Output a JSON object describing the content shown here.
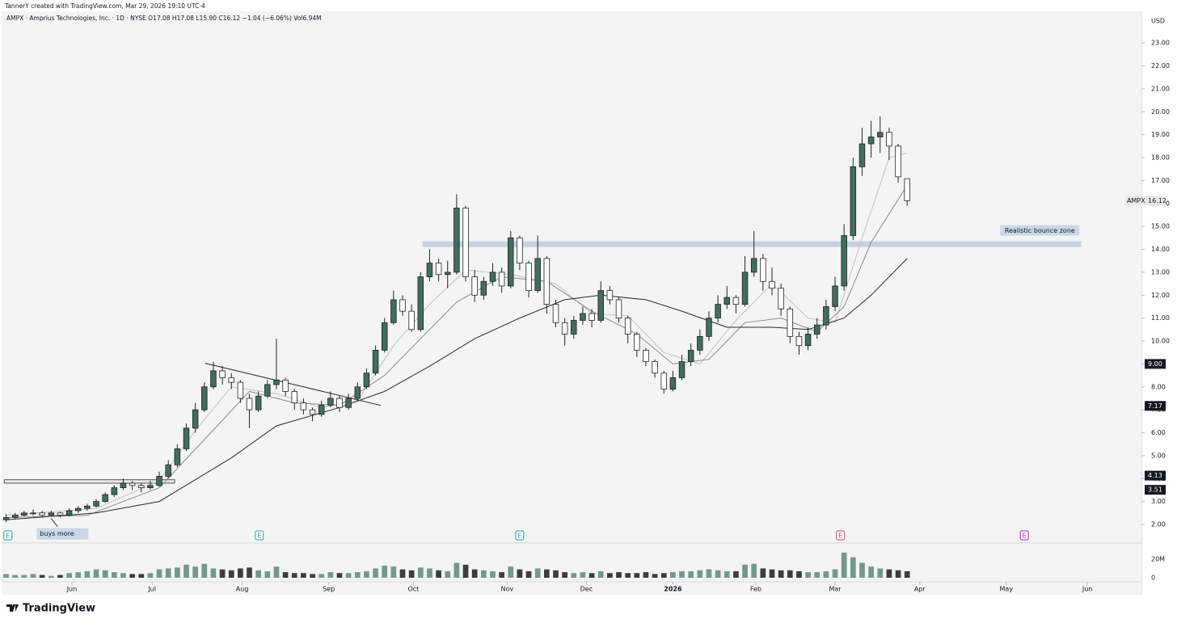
{
  "header": {
    "credit": "TannerY created with TradingView.com, Mar 29, 2026 19:10 UTC-4",
    "symbol_line": "AMPX · Amprius Technologies, Inc. · 1D · NYSE  O17.08  H17.08  L15.90  C16.12  −1.04 (−6.06%)  Vol6.94M"
  },
  "chart_data": {
    "type": "candlestick",
    "up_color": "#3f6e5e",
    "down_color": "#ffffff",
    "candles": [
      [
        2.2,
        2.45,
        2.1,
        2.3
      ],
      [
        2.3,
        2.5,
        2.25,
        2.4
      ],
      [
        2.4,
        2.6,
        2.35,
        2.5
      ],
      [
        2.5,
        2.65,
        2.4,
        2.5
      ],
      [
        2.5,
        2.6,
        2.3,
        2.4
      ],
      [
        2.4,
        2.6,
        2.35,
        2.5
      ],
      [
        2.5,
        2.55,
        2.3,
        2.4
      ],
      [
        2.4,
        2.7,
        2.35,
        2.6
      ],
      [
        2.6,
        2.8,
        2.5,
        2.7
      ],
      [
        2.7,
        2.9,
        2.6,
        2.8
      ],
      [
        2.8,
        3.1,
        2.75,
        3.0
      ],
      [
        3.0,
        3.4,
        2.95,
        3.3
      ],
      [
        3.3,
        3.7,
        3.2,
        3.6
      ],
      [
        3.6,
        4.0,
        3.5,
        3.8
      ],
      [
        3.8,
        3.9,
        3.5,
        3.7
      ],
      [
        3.7,
        3.8,
        3.4,
        3.6
      ],
      [
        3.6,
        3.9,
        3.5,
        3.7
      ],
      [
        3.7,
        4.3,
        3.65,
        4.1
      ],
      [
        4.1,
        4.8,
        4.0,
        4.6
      ],
      [
        4.6,
        5.5,
        4.5,
        5.3
      ],
      [
        5.3,
        6.4,
        5.2,
        6.2
      ],
      [
        6.2,
        7.3,
        6.0,
        7.0
      ],
      [
        7.0,
        8.2,
        6.9,
        8.0
      ],
      [
        8.0,
        9.1,
        7.9,
        8.7
      ],
      [
        8.7,
        8.9,
        8.1,
        8.4
      ],
      [
        8.4,
        8.6,
        7.9,
        8.2
      ],
      [
        8.2,
        8.3,
        7.3,
        7.5
      ],
      [
        7.5,
        7.7,
        6.2,
        7.0
      ],
      [
        7.0,
        7.8,
        6.9,
        7.6
      ],
      [
        7.6,
        8.3,
        7.5,
        8.1
      ],
      [
        8.1,
        10.1,
        7.9,
        8.3
      ],
      [
        8.3,
        8.4,
        7.6,
        7.8
      ],
      [
        7.8,
        7.9,
        7.0,
        7.3
      ],
      [
        7.3,
        7.5,
        6.8,
        7.0
      ],
      [
        7.0,
        7.1,
        6.5,
        6.8
      ],
      [
        6.8,
        7.4,
        6.7,
        7.2
      ],
      [
        7.2,
        7.8,
        7.1,
        7.5
      ],
      [
        7.5,
        7.6,
        6.9,
        7.1
      ],
      [
        7.1,
        7.7,
        7.0,
        7.5
      ],
      [
        7.5,
        8.2,
        7.4,
        8.0
      ],
      [
        8.0,
        8.8,
        7.9,
        8.6
      ],
      [
        8.6,
        9.8,
        8.5,
        9.6
      ],
      [
        9.6,
        11.0,
        9.5,
        10.8
      ],
      [
        10.8,
        12.2,
        10.7,
        11.8
      ],
      [
        11.8,
        12.0,
        11.1,
        11.3
      ],
      [
        11.3,
        11.6,
        10.4,
        10.5
      ],
      [
        10.5,
        13.0,
        10.4,
        12.8
      ],
      [
        12.8,
        14.0,
        12.6,
        13.4
      ],
      [
        13.4,
        13.6,
        12.6,
        12.9
      ],
      [
        12.9,
        13.5,
        12.3,
        13.0
      ],
      [
        13.0,
        16.4,
        12.9,
        15.8
      ],
      [
        15.8,
        15.9,
        12.6,
        12.8
      ],
      [
        12.8,
        13.1,
        11.7,
        12.0
      ],
      [
        12.0,
        12.8,
        11.8,
        12.6
      ],
      [
        12.6,
        13.4,
        12.4,
        13.0
      ],
      [
        13.0,
        13.2,
        12.1,
        12.4
      ],
      [
        12.4,
        14.8,
        12.3,
        14.5
      ],
      [
        14.5,
        14.6,
        13.1,
        13.4
      ],
      [
        13.4,
        13.5,
        11.9,
        12.2
      ],
      [
        12.2,
        14.6,
        12.1,
        13.6
      ],
      [
        13.6,
        13.7,
        11.2,
        11.6
      ],
      [
        11.6,
        11.8,
        10.6,
        10.8
      ],
      [
        10.8,
        11.0,
        9.8,
        10.3
      ],
      [
        10.3,
        11.1,
        10.1,
        10.9
      ],
      [
        10.9,
        11.5,
        10.7,
        11.2
      ],
      [
        11.2,
        11.4,
        10.6,
        10.9
      ],
      [
        10.9,
        12.6,
        10.8,
        12.2
      ],
      [
        12.2,
        12.4,
        11.6,
        11.8
      ],
      [
        11.8,
        11.9,
        10.8,
        11.0
      ],
      [
        11.0,
        11.1,
        9.9,
        10.3
      ],
      [
        10.3,
        10.4,
        9.3,
        9.6
      ],
      [
        9.6,
        9.7,
        8.9,
        9.1
      ],
      [
        9.1,
        9.2,
        8.4,
        8.6
      ],
      [
        8.6,
        8.7,
        7.7,
        7.9
      ],
      [
        7.9,
        8.7,
        7.8,
        8.4
      ],
      [
        8.4,
        9.4,
        8.3,
        9.1
      ],
      [
        9.1,
        9.9,
        8.9,
        9.6
      ],
      [
        9.6,
        10.5,
        9.4,
        10.2
      ],
      [
        10.2,
        11.3,
        10.0,
        11.0
      ],
      [
        11.0,
        12.0,
        10.8,
        11.6
      ],
      [
        11.6,
        12.4,
        11.4,
        11.9
      ],
      [
        11.9,
        12.0,
        11.2,
        11.6
      ],
      [
        11.6,
        13.7,
        11.5,
        13.0
      ],
      [
        13.0,
        14.8,
        12.8,
        13.6
      ],
      [
        13.6,
        13.8,
        12.2,
        12.6
      ],
      [
        12.6,
        13.2,
        12.0,
        12.3
      ],
      [
        12.3,
        12.5,
        11.1,
        11.4
      ],
      [
        11.4,
        11.5,
        9.9,
        10.2
      ],
      [
        10.2,
        10.4,
        9.4,
        9.8
      ],
      [
        9.8,
        10.6,
        9.6,
        10.3
      ],
      [
        10.3,
        11.0,
        10.1,
        10.7
      ],
      [
        10.7,
        11.8,
        10.5,
        11.5
      ],
      [
        11.5,
        12.8,
        11.3,
        12.4
      ],
      [
        12.4,
        15.1,
        12.2,
        14.6
      ],
      [
        14.6,
        18.0,
        14.4,
        17.6
      ],
      [
        17.6,
        19.3,
        17.2,
        18.6
      ],
      [
        18.6,
        19.6,
        18.0,
        18.9
      ],
      [
        18.9,
        19.8,
        18.2,
        19.1
      ],
      [
        19.1,
        19.3,
        17.9,
        18.5
      ],
      [
        18.5,
        18.6,
        16.9,
        17.16
      ],
      [
        17.08,
        17.08,
        15.9,
        16.12
      ]
    ],
    "xlim": [
      -0.5,
      126
    ],
    "xticks": [
      {
        "value": 7.3,
        "label": "Jun"
      },
      {
        "value": 16.2,
        "label": "Jul"
      },
      {
        "value": 26.2,
        "label": "Aug"
      },
      {
        "value": 35.8,
        "label": "Sep"
      },
      {
        "value": 45.2,
        "label": "Oct"
      },
      {
        "value": 55.6,
        "label": "Nov"
      },
      {
        "value": 64.4,
        "label": "Dec"
      },
      {
        "value": 74,
        "label": "2026"
      },
      {
        "value": 83.2,
        "label": "Feb"
      },
      {
        "value": 92,
        "label": "Mar"
      },
      {
        "value": 101.4,
        "label": "Apr"
      },
      {
        "value": 111,
        "label": "May"
      },
      {
        "value": 120,
        "label": "Jun"
      }
    ],
    "ylim": [
      1.19,
      24.38
    ],
    "yticks": [
      {
        "value": 2,
        "label": "2.00"
      },
      {
        "value": 3,
        "label": "3.00"
      },
      {
        "value": 4,
        "label": "4.00"
      },
      {
        "value": 5,
        "label": "5.00"
      },
      {
        "value": 6,
        "label": "6.00"
      },
      {
        "value": 7,
        "label": "7.00"
      },
      {
        "value": 8,
        "label": "8.00"
      },
      {
        "value": 9,
        "label": "9.00"
      },
      {
        "value": 10,
        "label": "10.00"
      },
      {
        "value": 11,
        "label": "11.00"
      },
      {
        "value": 12,
        "label": "12.00"
      },
      {
        "value": 13,
        "label": "13.00"
      },
      {
        "value": 14,
        "label": "14.00"
      },
      {
        "value": 15,
        "label": "15.00"
      },
      {
        "value": 16,
        "label": "16.00"
      },
      {
        "value": 17,
        "label": "17.00"
      },
      {
        "value": 18,
        "label": "18.00"
      },
      {
        "value": 19,
        "label": "19.00"
      },
      {
        "value": 20,
        "label": "20.00"
      },
      {
        "value": 21,
        "label": "21.00"
      },
      {
        "value": 22,
        "label": "22.00"
      },
      {
        "value": 23,
        "label": "23.00"
      }
    ],
    "currency": "USD",
    "moving_averages": [
      {
        "color": "#c2c2c2",
        "x": [
          0,
          10,
          17,
          21,
          25,
          30,
          35,
          39,
          43,
          47,
          51,
          56,
          61,
          65,
          69,
          73,
          77,
          81,
          85,
          89,
          92,
          95,
          98,
          100
        ],
        "values": [
          2.4,
          2.7,
          3.9,
          6.1,
          8.0,
          7.7,
          7.1,
          7.4,
          9.8,
          11.6,
          13.1,
          12.9,
          12.5,
          11.2,
          11.1,
          9.5,
          9.0,
          10.9,
          12.5,
          11.0,
          10.8,
          14.5,
          18.0,
          18.2
        ]
      },
      {
        "color": "#8a8a8a",
        "x": [
          0,
          9,
          17,
          22,
          27,
          32,
          37,
          42,
          46,
          50,
          55,
          60,
          65,
          70,
          74,
          78,
          82,
          86,
          90,
          93,
          96,
          100
        ],
        "values": [
          2.3,
          2.4,
          3.6,
          5.7,
          7.8,
          7.3,
          7.2,
          8.5,
          10.1,
          11.7,
          12.8,
          12.6,
          11.3,
          10.3,
          9.0,
          9.2,
          10.8,
          11.0,
          10.4,
          11.5,
          14.3,
          16.8
        ]
      },
      {
        "color": "#2a2a2a",
        "x": [
          0,
          10,
          17,
          25,
          30,
          37,
          42,
          47,
          52,
          57,
          62,
          66,
          71,
          75,
          80,
          85,
          89,
          93,
          96,
          100
        ],
        "values": [
          2.2,
          2.5,
          3.0,
          4.9,
          6.3,
          7.1,
          7.8,
          8.9,
          10.1,
          11.0,
          11.8,
          12.0,
          11.8,
          11.3,
          10.6,
          10.6,
          10.5,
          11.0,
          12.0,
          13.6
        ]
      }
    ],
    "volume": {
      "up_color": "#5b8a78",
      "down_color": "#1c1c1c",
      "values": [
        4,
        3,
        3,
        4,
        3,
        2,
        3,
        5,
        6,
        7,
        9,
        8,
        6,
        5,
        4,
        4,
        5,
        9,
        10,
        11,
        14,
        12,
        15,
        10,
        9,
        8,
        10,
        11,
        8,
        7,
        12,
        6,
        5,
        5,
        4,
        4,
        6,
        5,
        5,
        6,
        7,
        10,
        13,
        12,
        9,
        8,
        11,
        10,
        8,
        7,
        16,
        14,
        9,
        8,
        7,
        6,
        12,
        9,
        7,
        10,
        9,
        8,
        6,
        5,
        6,
        5,
        7,
        5,
        6,
        5,
        5,
        6,
        4,
        5,
        6,
        7,
        7,
        8,
        9,
        8,
        7,
        7,
        14,
        15,
        10,
        9,
        8,
        8,
        7,
        6,
        6,
        7,
        9,
        27,
        22,
        16,
        12,
        10,
        9,
        8,
        7
      ],
      "ylim": [
        0,
        30.4
      ],
      "yticks": [
        {
          "value": 20,
          "label": "20M"
        },
        0
      ]
    },
    "price_labels": [
      {
        "value": 16.12,
        "name": "AMPX"
      },
      {
        "value": 9,
        "label": "9.00"
      },
      {
        "value": 7.17
      },
      {
        "value": 4.13
      },
      {
        "value": 3.51
      }
    ],
    "trendline": {
      "x": [
        22.1,
        41.6
      ],
      "y": [
        9.03,
        7.19
      ]
    },
    "support_box": {
      "x": [
        -0.2,
        18.7
      ],
      "y": [
        3.8,
        3.95
      ]
    },
    "bounce_zone": {
      "x": [
        46.2,
        119.3
      ],
      "y": [
        14.1,
        14.35
      ],
      "label": "Realistic bounce zone"
    },
    "note": {
      "text": "buys more",
      "x": 5,
      "y": 2.4
    },
    "earnings": [
      {
        "x": 0.2,
        "label": "E",
        "color": "#26a69a"
      },
      {
        "x": 28.1,
        "label": "E",
        "color": "#26a69a"
      },
      {
        "x": 57,
        "label": "E",
        "color": "#26a69a"
      },
      {
        "x": 92.6,
        "label": "E",
        "color": "#e53935"
      },
      {
        "x": 113,
        "label": "E",
        "color": "#d500f9"
      }
    ]
  },
  "footer": {
    "brand": "TradingView"
  }
}
